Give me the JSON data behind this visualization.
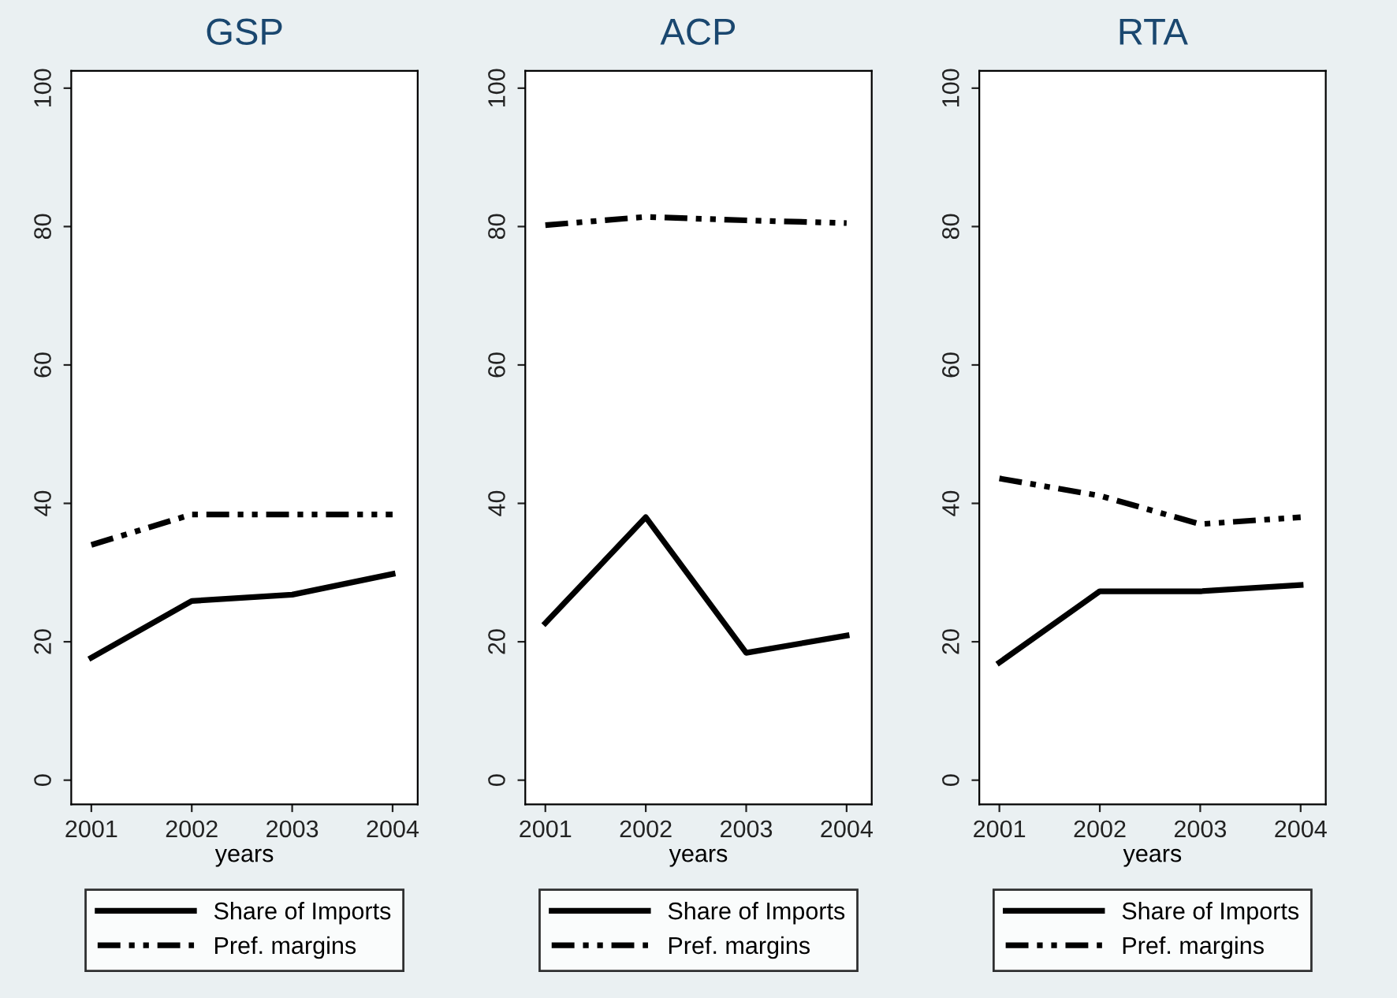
{
  "chart_data": [
    {
      "type": "line",
      "title": "GSP",
      "xlabel": "years",
      "x": [
        2001,
        2002,
        2003,
        2004
      ],
      "xlim": [
        2000.8,
        2004.25
      ],
      "xticks": [
        2001,
        2002,
        2003,
        2004
      ],
      "ylim": [
        -3.5,
        102.5
      ],
      "yticks": [
        0,
        20,
        40,
        60,
        80,
        100
      ],
      "legend": "bottom",
      "grid": false,
      "series": [
        {
          "name": "Share of Imports",
          "color": "#000000",
          "line_style": "solid",
          "values": [
            17.7,
            25.9,
            26.8,
            29.8
          ]
        },
        {
          "name": "Pref. margins",
          "color": "#000000",
          "line_style": "dotted",
          "values": [
            34,
            38.4,
            38.4,
            38.4
          ]
        }
      ]
    },
    {
      "type": "line",
      "title": "ACP",
      "xlabel": "years",
      "x": [
        2001,
        2002,
        2003,
        2004
      ],
      "xlim": [
        2000.8,
        2004.25
      ],
      "xticks": [
        2001,
        2002,
        2003,
        2004
      ],
      "ylim": [
        -3.5,
        102.5
      ],
      "yticks": [
        0,
        20,
        40,
        60,
        80,
        100
      ],
      "legend": "bottom",
      "grid": false,
      "series": [
        {
          "name": "Share of Imports",
          "color": "#000000",
          "line_style": "solid",
          "values": [
            22.7,
            38,
            18.4,
            20.9
          ]
        },
        {
          "name": "Pref. margins",
          "color": "#000000",
          "line_style": "dotted",
          "values": [
            80.2,
            81.4,
            80.9,
            80.5
          ]
        }
      ]
    },
    {
      "type": "line",
      "title": "RTA",
      "xlabel": "years",
      "x": [
        2001,
        2002,
        2003,
        2004
      ],
      "xlim": [
        2000.8,
        2004.25
      ],
      "xticks": [
        2001,
        2002,
        2003,
        2004
      ],
      "ylim": [
        -3.5,
        102.5
      ],
      "yticks": [
        0,
        20,
        40,
        60,
        80,
        100
      ],
      "legend": "bottom",
      "grid": false,
      "series": [
        {
          "name": "Share of Imports",
          "color": "#000000",
          "line_style": "solid",
          "values": [
            17,
            27.3,
            27.3,
            28.2
          ]
        },
        {
          "name": "Pref. margins",
          "color": "#000000",
          "line_style": "dotted",
          "values": [
            43.6,
            41.1,
            37,
            38
          ]
        }
      ]
    }
  ]
}
